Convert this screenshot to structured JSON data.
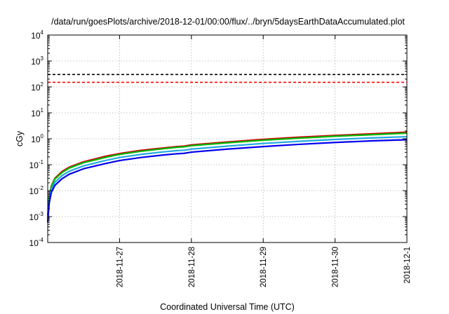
{
  "chart_data": {
    "type": "line",
    "title": "/data/run/goesPlots/archive/2018-12-01/00:00/flux/../bryn/5daysEarthDataAccumulated.plot",
    "xlabel": "Coordinated Universal Time (UTC)",
    "ylabel": "cGy",
    "y_scale": "log",
    "ylim": [
      0.0001,
      10000
    ],
    "xlim": [
      "2018-11-26T00:00",
      "2018-12-01T00:00"
    ],
    "grid": true,
    "y_ticks": [
      {
        "base": "10",
        "exp": "-4",
        "value": 0.0001
      },
      {
        "base": "10",
        "exp": "-3",
        "value": 0.001
      },
      {
        "base": "10",
        "exp": "-2",
        "value": 0.01
      },
      {
        "base": "10",
        "exp": "-1",
        "value": 0.1
      },
      {
        "base": "10",
        "exp": "0",
        "value": 1
      },
      {
        "base": "10",
        "exp": "1",
        "value": 10
      },
      {
        "base": "10",
        "exp": "2",
        "value": 100
      },
      {
        "base": "10",
        "exp": "3",
        "value": 1000
      },
      {
        "base": "10",
        "exp": "4",
        "value": 10000
      }
    ],
    "x_ticks": [
      {
        "label": "2018-11-27",
        "value": "2018-11-27T00:00"
      },
      {
        "label": "2018-11-28",
        "value": "2018-11-28T00:00"
      },
      {
        "label": "2018-11-29",
        "value": "2018-11-29T00:00"
      },
      {
        "label": "2018-11-30",
        "value": "2018-11-30T00:00"
      },
      {
        "label": "2018-12-1",
        "value": "2018-12-01T00:00"
      }
    ],
    "series": [
      {
        "color": "#000000",
        "style": "dashed",
        "x": [
          "2018-11-26T00:00",
          "2018-12-01T00:00"
        ],
        "y": [
          300,
          300
        ]
      },
      {
        "color": "#ff0000",
        "style": "dashed",
        "x": [
          "2018-11-26T00:00",
          "2018-12-01T00:00"
        ],
        "y": [
          150,
          150
        ]
      },
      {
        "color": "#cc0000",
        "style": "solid",
        "x": [
          "2018-11-26T00:00",
          "2018-11-26T00:30",
          "2018-11-26T01:12",
          "2018-11-26T02:24",
          "2018-11-26T04:48",
          "2018-11-26T07:12",
          "2018-11-26T12:00",
          "2018-11-26T19:12",
          "2018-11-27T00:00",
          "2018-11-27T07:12",
          "2018-11-27T14:24",
          "2018-11-27T19:12",
          "2018-11-27T21:36",
          "2018-11-28T00:00",
          "2018-11-28T12:00",
          "2018-11-29T00:00",
          "2018-11-29T12:00",
          "2018-11-30T00:00",
          "2018-11-30T12:00",
          "2018-12-01T00:00"
        ],
        "y": [
          0.001,
          0.006,
          0.015,
          0.03,
          0.055,
          0.08,
          0.13,
          0.21,
          0.27,
          0.36,
          0.44,
          0.5,
          0.52,
          0.58,
          0.75,
          0.95,
          1.15,
          1.35,
          1.55,
          1.8
        ]
      },
      {
        "color": "#00bb00",
        "style": "solid",
        "x": [
          "2018-11-26T00:00",
          "2018-11-26T00:30",
          "2018-11-26T01:12",
          "2018-11-26T02:24",
          "2018-11-26T04:48",
          "2018-11-26T07:12",
          "2018-11-26T12:00",
          "2018-11-26T19:12",
          "2018-11-27T00:00",
          "2018-11-27T07:12",
          "2018-11-27T14:24",
          "2018-11-27T19:12",
          "2018-11-27T21:36",
          "2018-11-28T00:00",
          "2018-11-28T12:00",
          "2018-11-29T00:00",
          "2018-11-29T12:00",
          "2018-11-30T00:00",
          "2018-11-30T12:00",
          "2018-12-01T00:00"
        ],
        "y": [
          0.0009,
          0.0055,
          0.014,
          0.028,
          0.05,
          0.074,
          0.12,
          0.19,
          0.25,
          0.33,
          0.41,
          0.47,
          0.49,
          0.54,
          0.7,
          0.88,
          1.06,
          1.25,
          1.43,
          1.65
        ]
      },
      {
        "color": "#22a9e0",
        "style": "solid",
        "x": [
          "2018-11-26T00:00",
          "2018-11-26T00:30",
          "2018-11-26T01:12",
          "2018-11-26T02:24",
          "2018-11-26T04:48",
          "2018-11-26T07:12",
          "2018-11-26T12:00",
          "2018-11-26T19:12",
          "2018-11-27T00:00",
          "2018-11-27T07:12",
          "2018-11-27T14:24",
          "2018-11-27T19:12",
          "2018-11-27T21:36",
          "2018-11-28T00:00",
          "2018-11-28T12:00",
          "2018-11-29T00:00",
          "2018-11-29T12:00",
          "2018-11-30T00:00",
          "2018-11-30T12:00",
          "2018-12-01T00:00"
        ],
        "y": [
          0.0008,
          0.0042,
          0.011,
          0.021,
          0.038,
          0.056,
          0.09,
          0.145,
          0.19,
          0.25,
          0.31,
          0.35,
          0.36,
          0.4,
          0.52,
          0.66,
          0.8,
          0.94,
          1.08,
          1.2
        ]
      },
      {
        "color": "#0000ee",
        "style": "solid",
        "x": [
          "2018-11-26T00:00",
          "2018-11-26T00:30",
          "2018-11-26T01:12",
          "2018-11-26T02:24",
          "2018-11-26T04:48",
          "2018-11-26T07:12",
          "2018-11-26T12:00",
          "2018-11-26T19:12",
          "2018-11-27T00:00",
          "2018-11-27T07:12",
          "2018-11-27T14:24",
          "2018-11-27T19:12",
          "2018-11-27T21:36",
          "2018-11-28T00:00",
          "2018-11-28T12:00",
          "2018-11-29T00:00",
          "2018-11-29T12:00",
          "2018-11-30T00:00",
          "2018-11-30T12:00",
          "2018-12-01T00:00"
        ],
        "y": [
          0.0006,
          0.0033,
          0.0085,
          0.016,
          0.029,
          0.043,
          0.07,
          0.11,
          0.145,
          0.19,
          0.235,
          0.265,
          0.275,
          0.305,
          0.4,
          0.5,
          0.61,
          0.72,
          0.83,
          0.92
        ]
      }
    ]
  }
}
